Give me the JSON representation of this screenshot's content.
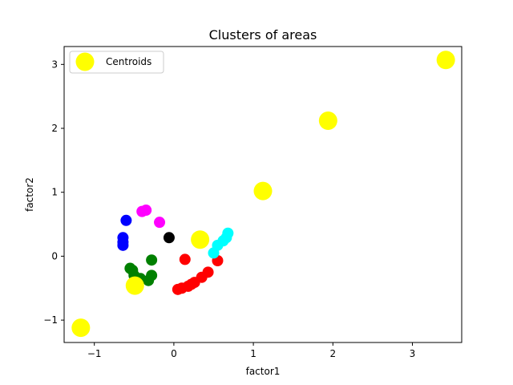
{
  "chart_data": {
    "type": "scatter",
    "title": "Clusters of areas",
    "xlabel": "factor1",
    "ylabel": "factor2",
    "xlim": [
      -1.38,
      3.62
    ],
    "ylim": [
      -1.35,
      3.28
    ],
    "xticks": [
      -1,
      0,
      1,
      2,
      3
    ],
    "yticks": [
      -1,
      0,
      1,
      2,
      3
    ],
    "grid": false,
    "legend": {
      "placement": "top-left",
      "entries": [
        "Centroids"
      ]
    },
    "series": [
      {
        "color": "#ff0000",
        "points": [
          [
            0.05,
            -0.52
          ],
          [
            0.1,
            -0.5
          ],
          [
            0.18,
            -0.47
          ],
          [
            0.22,
            -0.44
          ],
          [
            0.26,
            -0.41
          ],
          [
            0.35,
            -0.33
          ],
          [
            0.43,
            -0.25
          ],
          [
            0.55,
            -0.07
          ],
          [
            0.14,
            -0.05
          ]
        ]
      },
      {
        "color": "#008000",
        "points": [
          [
            -0.55,
            -0.19
          ],
          [
            -0.52,
            -0.22
          ],
          [
            -0.5,
            -0.3
          ],
          [
            -0.42,
            -0.35
          ],
          [
            -0.32,
            -0.38
          ],
          [
            -0.28,
            -0.3
          ],
          [
            -0.28,
            -0.06
          ]
        ]
      },
      {
        "color": "#0000ff",
        "points": [
          [
            -0.6,
            0.56
          ],
          [
            -0.64,
            0.29
          ],
          [
            -0.64,
            0.22
          ],
          [
            -0.64,
            0.17
          ]
        ]
      },
      {
        "color": "#ff00ff",
        "points": [
          [
            -0.4,
            0.7
          ],
          [
            -0.35,
            0.72
          ],
          [
            -0.18,
            0.53
          ]
        ]
      },
      {
        "color": "#000000",
        "points": [
          [
            -0.06,
            0.29
          ]
        ]
      },
      {
        "color": "#00ffff",
        "points": [
          [
            0.5,
            0.05
          ],
          [
            0.55,
            0.17
          ],
          [
            0.62,
            0.24
          ],
          [
            0.66,
            0.29
          ],
          [
            0.68,
            0.36
          ]
        ]
      },
      {
        "name": "Centroids",
        "color": "#ffff00",
        "size": "large",
        "points": [
          [
            -1.17,
            -1.12
          ],
          [
            -0.49,
            -0.46
          ],
          [
            0.33,
            0.26
          ],
          [
            1.12,
            1.02
          ],
          [
            1.94,
            2.12
          ],
          [
            3.42,
            3.07
          ]
        ]
      }
    ]
  }
}
